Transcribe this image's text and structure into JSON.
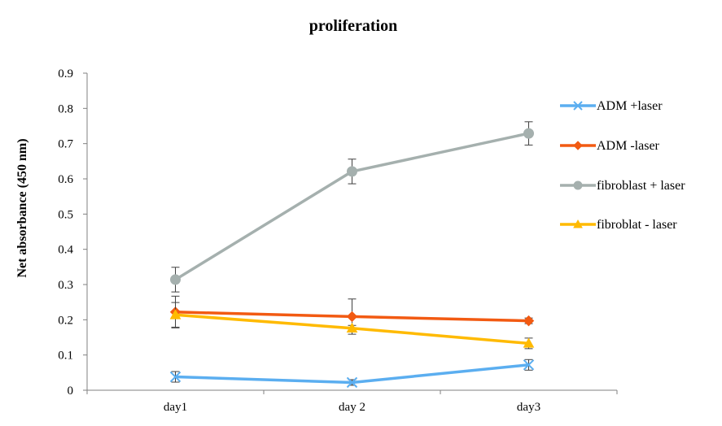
{
  "chart_data": {
    "type": "line",
    "title": "proliferation",
    "xlabel": "",
    "ylabel": "Net absorbance  (450 nm)",
    "categories": [
      "day1",
      "day 2",
      "day3"
    ],
    "ylim": [
      0,
      0.9
    ],
    "yticks": [
      "0",
      "0.1",
      "0.2",
      "0.3",
      "0.4",
      "0.5",
      "0.6",
      "0.7",
      "0.8",
      "0.9"
    ],
    "grid": false,
    "legend_position": "right",
    "series": [
      {
        "name": "ADM +laser",
        "color": "#5BAEF0",
        "marker": "x",
        "values": [
          0.038,
          0.022,
          0.072
        ],
        "errors": [
          0.015,
          0.008,
          0.015
        ]
      },
      {
        "name": "ADM -laser",
        "color": "#F25A12",
        "marker": "diamond",
        "values": [
          0.222,
          0.209,
          0.197
        ],
        "errors": [
          0.045,
          0.05,
          0.008
        ]
      },
      {
        "name": "fibroblast + laser",
        "color": "#A5B0AE",
        "marker": "circle",
        "values": [
          0.314,
          0.621,
          0.729
        ],
        "errors": [
          0.035,
          0.035,
          0.033
        ]
      },
      {
        "name": "fibroblat - laser",
        "color": "#FFBA00",
        "marker": "triangle",
        "values": [
          0.214,
          0.176,
          0.133
        ],
        "errors": [
          0.035,
          0.008,
          0.015
        ]
      }
    ]
  }
}
